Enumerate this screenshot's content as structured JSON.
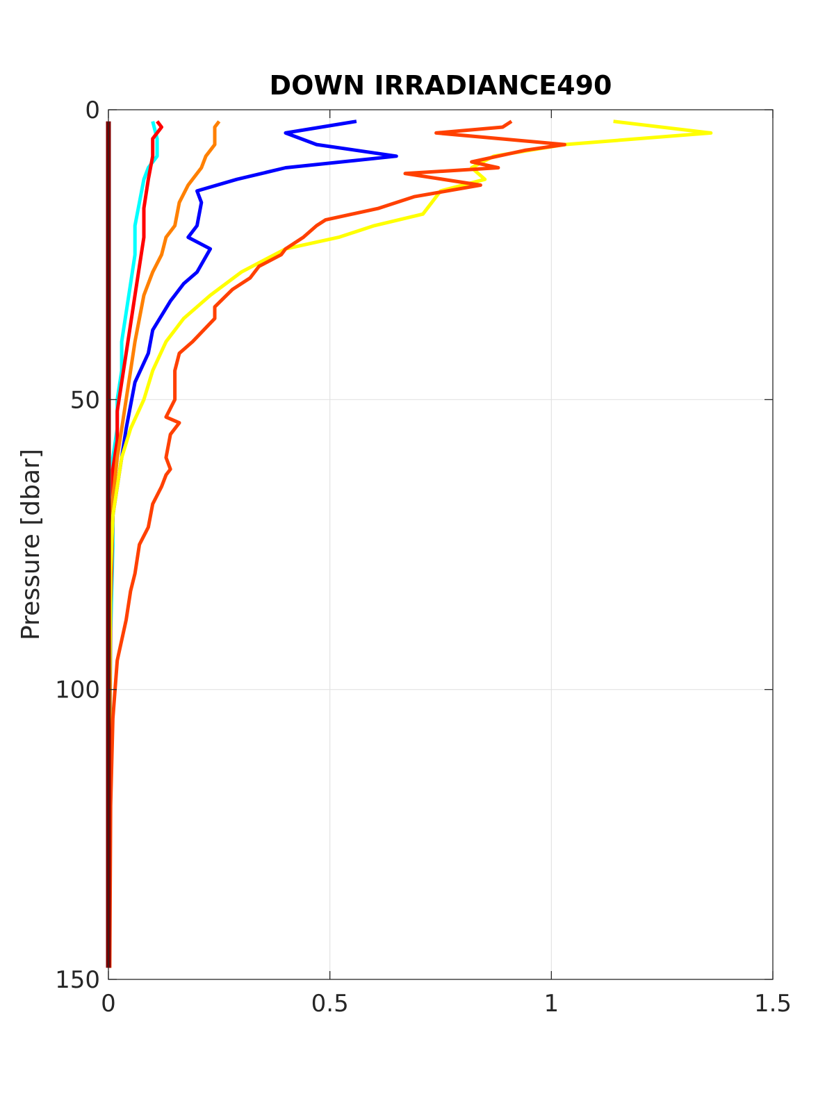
{
  "chart_data": {
    "type": "line",
    "title": "DOWN IRRADIANCE490",
    "xlabel": "",
    "ylabel": "Pressure [dbar]",
    "xlim": [
      0,
      1.5
    ],
    "ylim": [
      0,
      150
    ],
    "y_reversed": true,
    "grid": true,
    "xticks": [
      "0",
      "0.5",
      "1",
      "1.5"
    ],
    "yticks": [
      "0",
      "50",
      "100",
      "150"
    ],
    "series": [
      {
        "color": "#00ffff",
        "x": [
          0.1,
          0.11,
          0.11,
          0.09,
          0.08,
          0.07,
          0.06,
          0.06,
          0.05,
          0.04,
          0.03,
          0.03,
          0.02,
          0.02,
          0.01,
          0.01,
          0.01,
          0.005,
          0.003,
          0.002
        ],
        "y": [
          2,
          5,
          8,
          10,
          12,
          16,
          20,
          25,
          30,
          35,
          40,
          45,
          50,
          55,
          60,
          65,
          75,
          90,
          110,
          148
        ]
      },
      {
        "color": "#ff0000",
        "x": [
          0.11,
          0.12,
          0.1,
          0.1,
          0.09,
          0.08,
          0.08,
          0.07,
          0.06,
          0.05,
          0.04,
          0.03,
          0.02,
          0.02,
          0.01,
          0.01,
          0.005,
          0.003,
          0.002
        ],
        "y": [
          2,
          3,
          5,
          8,
          12,
          17,
          22,
          27,
          32,
          37,
          42,
          47,
          52,
          57,
          62,
          70,
          85,
          110,
          148
        ]
      },
      {
        "color": "#ff8000",
        "x": [
          0.25,
          0.24,
          0.24,
          0.22,
          0.21,
          0.18,
          0.16,
          0.15,
          0.13,
          0.12,
          0.1,
          0.08,
          0.07,
          0.06,
          0.05,
          0.04,
          0.03,
          0.02,
          0.01,
          0.005,
          0.003,
          0.002
        ],
        "y": [
          2,
          3,
          6,
          8,
          10,
          13,
          16,
          20,
          22,
          25,
          28,
          32,
          36,
          40,
          45,
          50,
          55,
          60,
          67,
          80,
          100,
          148
        ]
      },
      {
        "color": "#0000ff",
        "x": [
          0.56,
          0.4,
          0.47,
          0.65,
          0.4,
          0.29,
          0.2,
          0.21,
          0.2,
          0.18,
          0.23,
          0.2,
          0.17,
          0.14,
          0.1,
          0.09,
          0.06,
          0.04,
          0.03,
          0.02,
          0.01,
          0.005,
          0.003,
          0.002
        ],
        "y": [
          2,
          4,
          6,
          8,
          10,
          12,
          14,
          16,
          20,
          22,
          24,
          28,
          30,
          33,
          38,
          42,
          47,
          55,
          60,
          65,
          70,
          80,
          100,
          148
        ]
      },
      {
        "color": "#ffff00",
        "x": [
          1.14,
          1.36,
          1.03,
          0.87,
          0.82,
          0.85,
          0.75,
          0.71,
          0.6,
          0.52,
          0.4,
          0.3,
          0.23,
          0.17,
          0.13,
          0.1,
          0.08,
          0.05,
          0.03,
          0.02,
          0.01,
          0.005,
          0.003,
          0.002
        ],
        "y": [
          2,
          4,
          6,
          8,
          10,
          12,
          14,
          18,
          20,
          22,
          24,
          28,
          32,
          36,
          40,
          45,
          50,
          55,
          60,
          65,
          70,
          80,
          100,
          148
        ]
      },
      {
        "color": "#ff4000",
        "x": [
          0.91,
          0.89,
          0.74,
          1.03,
          0.94,
          0.82,
          0.88,
          0.67,
          0.84,
          0.69,
          0.61,
          0.49,
          0.47,
          0.44,
          0.4,
          0.39,
          0.34,
          0.32,
          0.28,
          0.24,
          0.24,
          0.19,
          0.16,
          0.15,
          0.15,
          0.13,
          0.16,
          0.14,
          0.13,
          0.14,
          0.13,
          0.12,
          0.1,
          0.09,
          0.07,
          0.06,
          0.05,
          0.04,
          0.02,
          0.01,
          0.005,
          0.003
        ],
        "y": [
          2,
          3,
          4,
          6,
          7,
          9,
          10,
          11,
          13,
          15,
          17,
          19,
          20,
          22,
          24,
          25,
          27,
          29,
          31,
          34,
          36,
          40,
          42,
          45,
          50,
          53,
          54,
          56,
          60,
          62,
          63,
          65,
          68,
          72,
          75,
          80,
          83,
          88,
          95,
          105,
          120,
          148
        ]
      },
      {
        "color": "#800000",
        "x": [
          0,
          0,
          0
        ],
        "y": [
          2,
          75,
          148
        ]
      }
    ]
  }
}
